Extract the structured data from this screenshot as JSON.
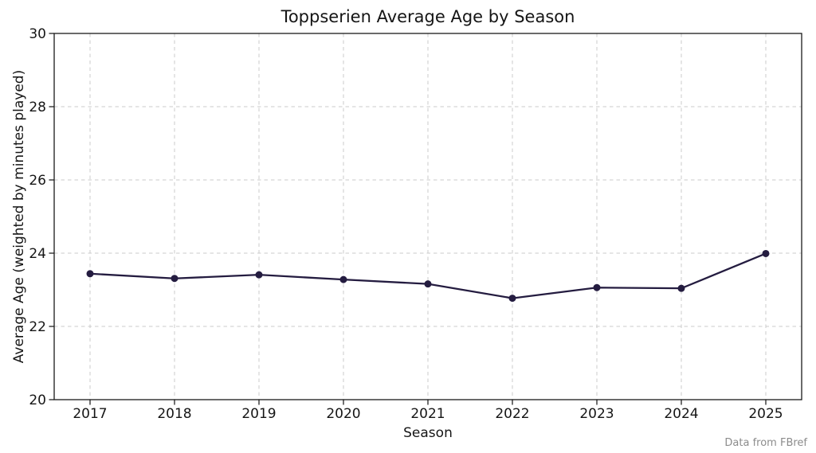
{
  "chart_data": {
    "type": "line",
    "title": "Toppserien Average Age by Season",
    "xlabel": "Season",
    "ylabel": "Average Age (weighted by minutes played)",
    "categories": [
      "2017",
      "2018",
      "2019",
      "2020",
      "2021",
      "2022",
      "2023",
      "2024",
      "2025"
    ],
    "values": [
      23.44,
      23.31,
      23.41,
      23.28,
      23.16,
      22.77,
      23.06,
      23.04,
      23.99
    ],
    "ylim": [
      20,
      30
    ],
    "yticks": [
      20,
      22,
      24,
      26,
      28,
      30
    ],
    "grid": true,
    "legend_position": "none",
    "annotation": "Data from FBref"
  },
  "style": {
    "line_color": "#241c40",
    "marker_color": "#241c40",
    "grid_color": "#cbcbcb",
    "text_color": "#151515",
    "footer_color": "#8c8c8c",
    "background": "#ffffff"
  }
}
